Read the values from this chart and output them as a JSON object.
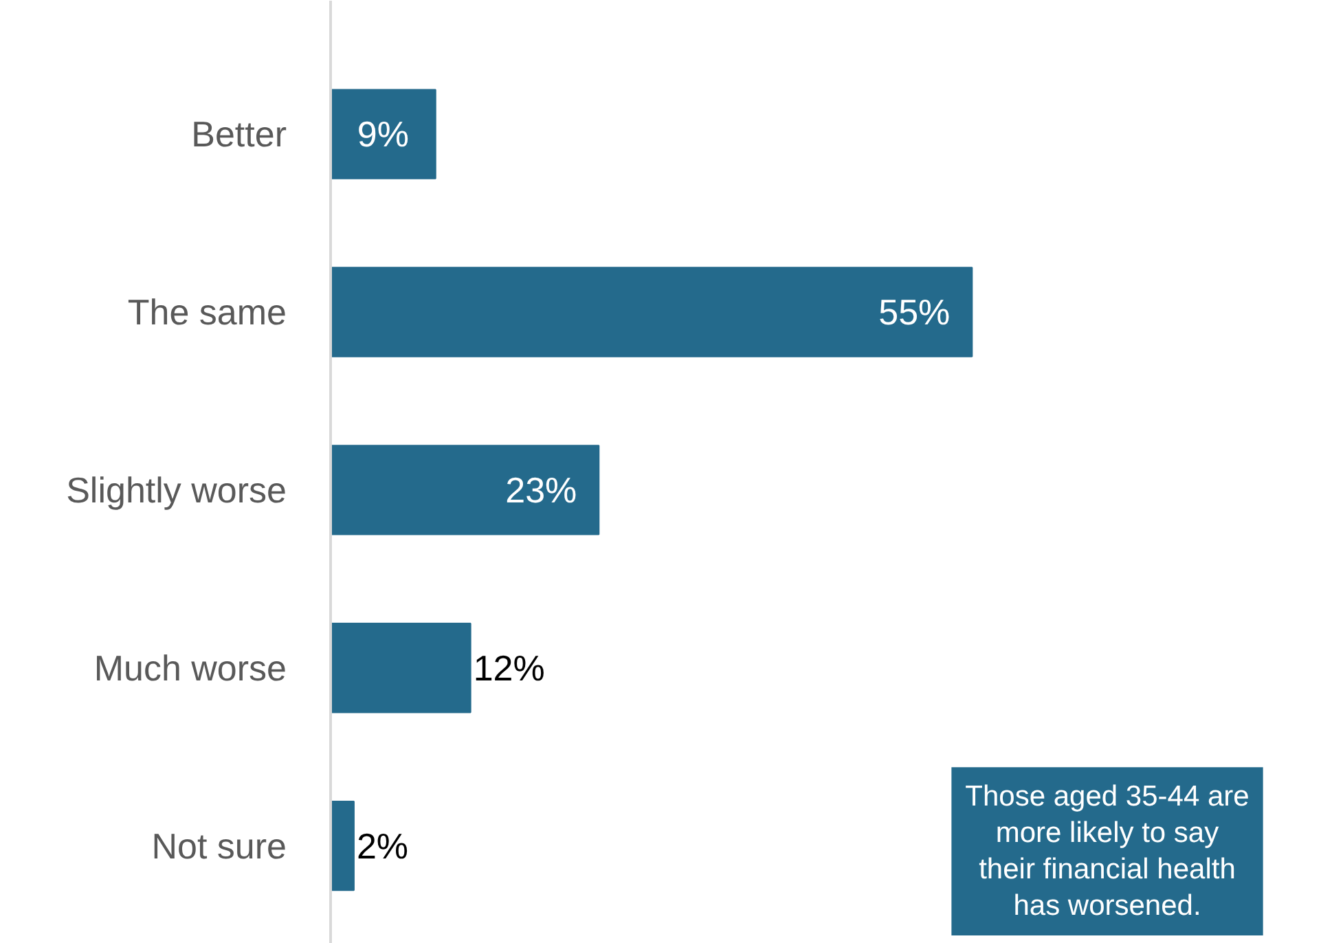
{
  "chart_data": {
    "type": "bar",
    "orientation": "horizontal",
    "categories": [
      "Better",
      "The same",
      "Slightly worse",
      "Much worse",
      "Not sure"
    ],
    "values": [
      9,
      55,
      23,
      12,
      2
    ],
    "value_labels": [
      "9%",
      "55%",
      "23%",
      "12%",
      "2%"
    ],
    "color": "#246a8c",
    "grid": false,
    "annotations": [
      "Those aged 35-44 are more likely to say their financial health has worsened."
    ]
  }
}
